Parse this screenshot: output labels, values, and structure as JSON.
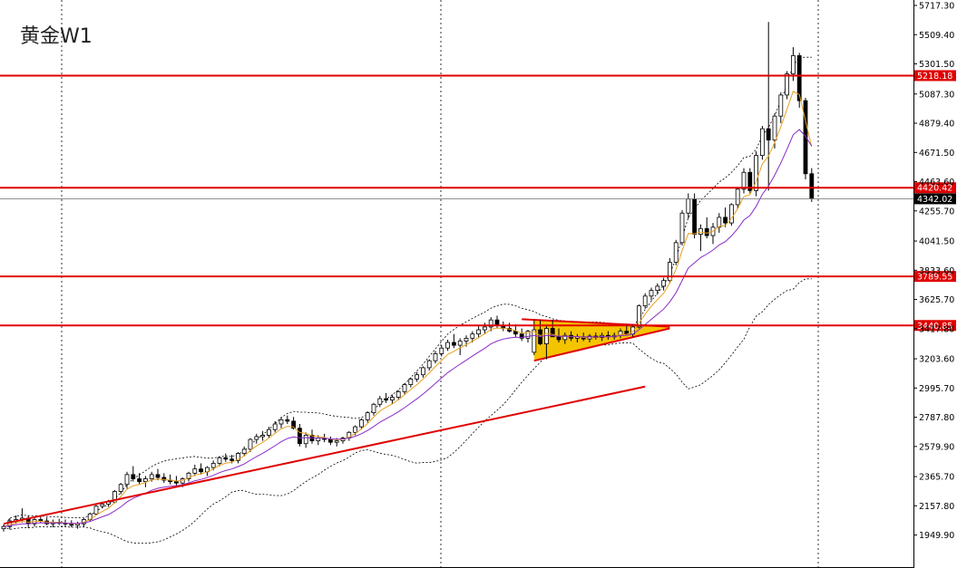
{
  "chart_data": {
    "type": "candlestick",
    "title": "黄金W1",
    "y_axis": {
      "ticks": [
        "5717.30",
        "5509.40",
        "5301.50",
        "5087.30",
        "4879.40",
        "4671.50",
        "4463.60",
        "4255.70",
        "4041.50",
        "3833.60",
        "3625.70",
        "3417.80",
        "3203.60",
        "2995.70",
        "2787.80",
        "2579.90",
        "2365.70",
        "2157.80",
        "1949.90"
      ],
      "range": [
        1883,
        5717.3
      ]
    },
    "current_price": {
      "value": 4342.02,
      "label": "4342.02"
    },
    "horizontal_levels": [
      {
        "value": 5218.18,
        "label": "5218.18"
      },
      {
        "value": 4420.42,
        "label": "4420.42"
      },
      {
        "value": 3789.55,
        "label": "3789.55"
      },
      {
        "value": 3440.85,
        "label": "3440.85"
      }
    ],
    "trendlines": [
      {
        "name": "support",
        "from": [
          0,
          2030
        ],
        "to": [
          104,
          3006
        ]
      }
    ],
    "triangle_pattern": {
      "top": [
        [
          86,
          3475
        ],
        [
          108,
          3432
        ]
      ],
      "bottom": [
        [
          86,
          3190
        ],
        [
          108,
          3420
        ]
      ]
    },
    "candles": [
      [
        1995,
        2025,
        1975,
        2010
      ],
      [
        2010,
        2070,
        1990,
        2050
      ],
      [
        2050,
        2090,
        2030,
        2060
      ],
      [
        2060,
        2140,
        2040,
        2070
      ],
      [
        2070,
        2090,
        2000,
        2030
      ],
      [
        2030,
        2080,
        2010,
        2060
      ],
      [
        2060,
        2085,
        2035,
        2050
      ],
      [
        2050,
        2075,
        2020,
        2030
      ],
      [
        2030,
        2060,
        2005,
        2040
      ],
      [
        2040,
        2065,
        2020,
        2035
      ],
      [
        2035,
        2060,
        2010,
        2030
      ],
      [
        2030,
        2055,
        2005,
        2020
      ],
      [
        2020,
        2045,
        1995,
        2030
      ],
      [
        2030,
        2070,
        2010,
        2060
      ],
      [
        2060,
        2110,
        2045,
        2100
      ],
      [
        2100,
        2165,
        2090,
        2155
      ],
      [
        2155,
        2185,
        2140,
        2170
      ],
      [
        2170,
        2200,
        2150,
        2185
      ],
      [
        2185,
        2270,
        2175,
        2260
      ],
      [
        2260,
        2320,
        2240,
        2310
      ],
      [
        2310,
        2400,
        2280,
        2380
      ],
      [
        2380,
        2440,
        2330,
        2350
      ],
      [
        2350,
        2390,
        2310,
        2330
      ],
      [
        2330,
        2370,
        2290,
        2350
      ],
      [
        2350,
        2400,
        2330,
        2380
      ],
      [
        2380,
        2420,
        2340,
        2360
      ],
      [
        2360,
        2390,
        2320,
        2340
      ],
      [
        2340,
        2380,
        2310,
        2330
      ],
      [
        2330,
        2370,
        2300,
        2320
      ],
      [
        2320,
        2360,
        2290,
        2350
      ],
      [
        2350,
        2400,
        2330,
        2390
      ],
      [
        2390,
        2450,
        2370,
        2420
      ],
      [
        2420,
        2460,
        2380,
        2400
      ],
      [
        2400,
        2440,
        2370,
        2430
      ],
      [
        2430,
        2480,
        2410,
        2460
      ],
      [
        2460,
        2510,
        2440,
        2500
      ],
      [
        2500,
        2530,
        2470,
        2490
      ],
      [
        2490,
        2520,
        2460,
        2480
      ],
      [
        2480,
        2540,
        2460,
        2530
      ],
      [
        2530,
        2580,
        2510,
        2560
      ],
      [
        2560,
        2640,
        2540,
        2630
      ],
      [
        2630,
        2670,
        2600,
        2650
      ],
      [
        2650,
        2690,
        2620,
        2660
      ],
      [
        2660,
        2720,
        2640,
        2700
      ],
      [
        2700,
        2760,
        2680,
        2740
      ],
      [
        2740,
        2790,
        2710,
        2770
      ],
      [
        2770,
        2800,
        2740,
        2760
      ],
      [
        2760,
        2790,
        2700,
        2710
      ],
      [
        2710,
        2740,
        2580,
        2600
      ],
      [
        2600,
        2680,
        2570,
        2660
      ],
      [
        2660,
        2700,
        2600,
        2620
      ],
      [
        2620,
        2660,
        2590,
        2640
      ],
      [
        2640,
        2670,
        2610,
        2630
      ],
      [
        2630,
        2650,
        2590,
        2610
      ],
      [
        2610,
        2640,
        2580,
        2620
      ],
      [
        2620,
        2650,
        2600,
        2640
      ],
      [
        2640,
        2690,
        2620,
        2680
      ],
      [
        2680,
        2730,
        2660,
        2720
      ],
      [
        2720,
        2780,
        2700,
        2770
      ],
      [
        2770,
        2830,
        2750,
        2820
      ],
      [
        2820,
        2890,
        2800,
        2880
      ],
      [
        2880,
        2940,
        2860,
        2920
      ],
      [
        2920,
        2960,
        2890,
        2910
      ],
      [
        2910,
        2950,
        2880,
        2930
      ],
      [
        2930,
        2980,
        2910,
        2970
      ],
      [
        2970,
        3030,
        2950,
        3020
      ],
      [
        3020,
        3070,
        3000,
        3060
      ],
      [
        3060,
        3110,
        3040,
        3090
      ],
      [
        3090,
        3150,
        3070,
        3140
      ],
      [
        3140,
        3200,
        3120,
        3190
      ],
      [
        3190,
        3260,
        3170,
        3240
      ],
      [
        3240,
        3300,
        3220,
        3280
      ],
      [
        3280,
        3340,
        3260,
        3320
      ],
      [
        3320,
        3380,
        3280,
        3300
      ],
      [
        3300,
        3350,
        3230,
        3330
      ],
      [
        3330,
        3370,
        3290,
        3350
      ],
      [
        3350,
        3400,
        3320,
        3380
      ],
      [
        3380,
        3440,
        3350,
        3410
      ],
      [
        3410,
        3460,
        3380,
        3430
      ],
      [
        3430,
        3500,
        3400,
        3480
      ],
      [
        3480,
        3510,
        3420,
        3440
      ],
      [
        3440,
        3470,
        3400,
        3420
      ],
      [
        3420,
        3460,
        3390,
        3400
      ],
      [
        3400,
        3450,
        3360,
        3380
      ],
      [
        3380,
        3420,
        3330,
        3350
      ],
      [
        3350,
        3410,
        3320,
        3400
      ],
      [
        3250,
        3480,
        3230,
        3410
      ],
      [
        3410,
        3480,
        3300,
        3310
      ],
      [
        3310,
        3440,
        3200,
        3420
      ],
      [
        3420,
        3480,
        3380,
        3360
      ],
      [
        3360,
        3420,
        3320,
        3340
      ],
      [
        3340,
        3390,
        3310,
        3370
      ],
      [
        3370,
        3400,
        3330,
        3350
      ],
      [
        3350,
        3380,
        3320,
        3360
      ],
      [
        3360,
        3390,
        3330,
        3345
      ],
      [
        3345,
        3380,
        3320,
        3365
      ],
      [
        3365,
        3390,
        3340,
        3355
      ],
      [
        3355,
        3390,
        3330,
        3370
      ],
      [
        3370,
        3400,
        3340,
        3360
      ],
      [
        3360,
        3390,
        3340,
        3370
      ],
      [
        3370,
        3420,
        3350,
        3400
      ],
      [
        3400,
        3450,
        3370,
        3380
      ],
      [
        3380,
        3450,
        3360,
        3430
      ],
      [
        3430,
        3590,
        3420,
        3580
      ],
      [
        3580,
        3670,
        3560,
        3650
      ],
      [
        3650,
        3710,
        3620,
        3690
      ],
      [
        3690,
        3740,
        3660,
        3720
      ],
      [
        3720,
        3780,
        3690,
        3760
      ],
      [
        3760,
        3920,
        3740,
        3890
      ],
      [
        3890,
        4050,
        3870,
        4030
      ],
      [
        4030,
        4260,
        4010,
        4240
      ],
      [
        4240,
        4380,
        4200,
        4340
      ],
      [
        4340,
        4380,
        4060,
        4090
      ],
      [
        4090,
        4160,
        3970,
        4130
      ],
      [
        4130,
        4210,
        4060,
        4080
      ],
      [
        4080,
        4170,
        4020,
        4140
      ],
      [
        4140,
        4240,
        4100,
        4210
      ],
      [
        4210,
        4280,
        4140,
        4170
      ],
      [
        4170,
        4310,
        4150,
        4300
      ],
      [
        4300,
        4420,
        4270,
        4410
      ],
      [
        4410,
        4560,
        4380,
        4530
      ],
      [
        4530,
        4560,
        4380,
        4400
      ],
      [
        4400,
        4680,
        4360,
        4650
      ],
      [
        4650,
        4860,
        4620,
        4840
      ],
      [
        4840,
        5600,
        4400,
        4760
      ],
      [
        4760,
        4950,
        4700,
        4930
      ],
      [
        4930,
        5100,
        4880,
        5080
      ],
      [
        5080,
        5250,
        5050,
        5230
      ],
      [
        5230,
        5420,
        5180,
        5360
      ],
      [
        5360,
        5380,
        4990,
        5040
      ],
      [
        5040,
        5060,
        4480,
        4520
      ],
      [
        4520,
        4560,
        4320,
        4342.02
      ]
    ]
  }
}
